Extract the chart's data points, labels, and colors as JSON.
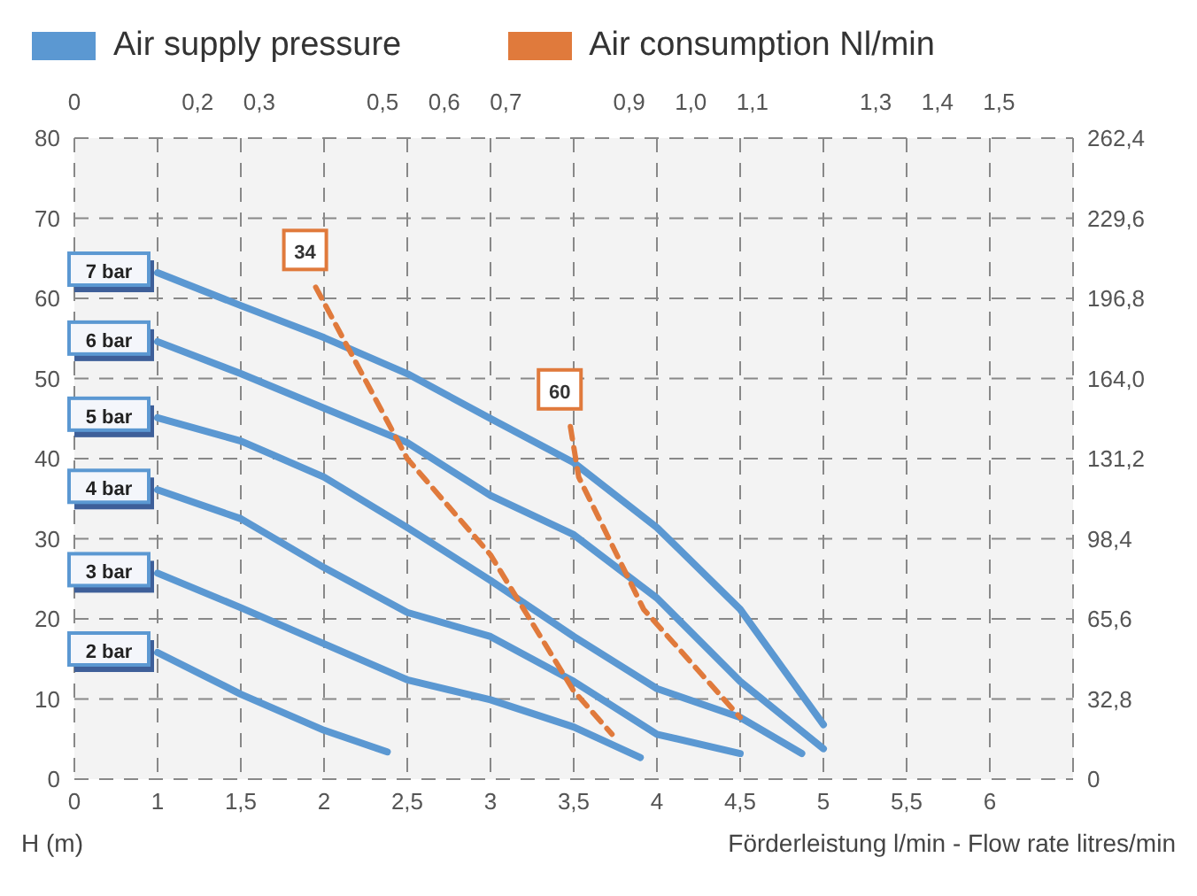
{
  "chart_data": {
    "type": "line",
    "xlabel": "Förderleistung l/min  -  Flow rate litres/min",
    "ylabel": "H (m)",
    "annotations": [
      "Air supply pressure",
      "Air consumption Nl/min"
    ],
    "legend": "top",
    "grid": true,
    "line_style": "solid",
    "marker": "none",
    "xlim": [
      0.5,
      6.5
    ],
    "xticks": [
      {
        "value": 0.5,
        "label": "0"
      },
      1,
      {
        "value": 1.5,
        "label": "1,5"
      },
      2,
      {
        "value": 2.5,
        "label": "2,5"
      },
      3,
      {
        "value": 3.5,
        "label": "3,5"
      },
      4,
      {
        "value": 4.5,
        "label": "4,5"
      },
      5,
      {
        "value": 5.5,
        "label": "5,5"
      },
      6
    ],
    "x2lim": [
      0,
      1.62
    ],
    "x2ticks": [
      0,
      {
        "value": 0.2,
        "label": "0,2"
      },
      {
        "value": 0.3,
        "label": "0,3"
      },
      {
        "value": 0.5,
        "label": "0,5"
      },
      {
        "value": 0.6,
        "label": "0,6"
      },
      {
        "value": 0.7,
        "label": "0,7"
      },
      {
        "value": 0.9,
        "label": "0,9"
      },
      {
        "value": 1.0,
        "label": "1,0"
      },
      {
        "value": 1.1,
        "label": "1,1"
      },
      {
        "value": 1.3,
        "label": "1,3"
      },
      {
        "value": 1.4,
        "label": "1,4"
      },
      {
        "value": 1.5,
        "label": "1,5"
      }
    ],
    "ylim": [
      0,
      80
    ],
    "yticks": [
      0,
      10,
      20,
      30,
      40,
      50,
      60,
      70,
      80
    ],
    "y2lim": [
      0,
      262.4
    ],
    "y2ticks": [
      0,
      {
        "value": 32.8,
        "label": "32,8"
      },
      {
        "value": 65.6,
        "label": "65,6"
      },
      {
        "value": 98.4,
        "label": "98,4"
      },
      {
        "value": 131.2,
        "label": "131,2"
      },
      {
        "value": 164,
        "label": "164,0"
      },
      {
        "value": 196.8,
        "label": "196,8"
      },
      {
        "value": 229.6,
        "label": "229,6"
      },
      {
        "value": 262.4,
        "label": "262,4"
      }
    ],
    "series": [
      {
        "name": "7 bar",
        "color": "#5b98d2",
        "x": [
          1,
          1.5,
          2,
          2.5,
          3,
          3.5,
          4,
          4.5,
          5
        ],
        "values": [
          63.2,
          59.1,
          55.1,
          50.6,
          45,
          39.5,
          31.4,
          21.2,
          6.8
        ]
      },
      {
        "name": "6 bar",
        "color": "#5b98d2",
        "x": [
          1,
          1.5,
          2,
          2.5,
          3,
          3.5,
          4,
          4.5,
          5
        ],
        "values": [
          54.6,
          50.6,
          46.3,
          42,
          35.4,
          30.5,
          22.6,
          12.2,
          3.8
        ]
      },
      {
        "name": "5 bar",
        "color": "#5b98d2",
        "x": [
          1,
          1.5,
          2,
          2.5,
          3,
          3.5,
          4,
          4.5,
          4.87
        ],
        "values": [
          45.1,
          42.2,
          37.7,
          31.4,
          24.8,
          17.8,
          11.3,
          7.7,
          3.2
        ]
      },
      {
        "name": "4 bar",
        "color": "#5b98d2",
        "x": [
          1,
          1.5,
          2,
          2.5,
          3,
          3.5,
          4,
          4.5
        ],
        "values": [
          36.1,
          32.5,
          26.4,
          20.8,
          17.8,
          12.2,
          5.6,
          3.2
        ]
      },
      {
        "name": "3 bar",
        "color": "#5b98d2",
        "x": [
          1,
          1.5,
          2,
          2.5,
          3,
          3.5,
          3.9
        ],
        "values": [
          25.7,
          21.4,
          16.9,
          12.4,
          9.9,
          6.5,
          2.7
        ]
      },
      {
        "name": "2 bar",
        "color": "#5b98d2",
        "x": [
          1,
          1.5,
          2,
          2.38
        ],
        "values": [
          15.8,
          10.6,
          6.1,
          3.4
        ]
      },
      {
        "name": "34",
        "color": "#e07a3c",
        "line_style": "dashed",
        "x": [
          1.95,
          2.5,
          3,
          3.5,
          3.73
        ],
        "values": [
          61.4,
          40,
          28,
          11,
          5.6
        ]
      },
      {
        "name": "60",
        "color": "#e07a3c",
        "line_style": "dashed",
        "x": [
          3.48,
          3.53,
          3.92,
          4.5
        ],
        "values": [
          44,
          37.7,
          21.2,
          7.7
        ]
      }
    ]
  }
}
